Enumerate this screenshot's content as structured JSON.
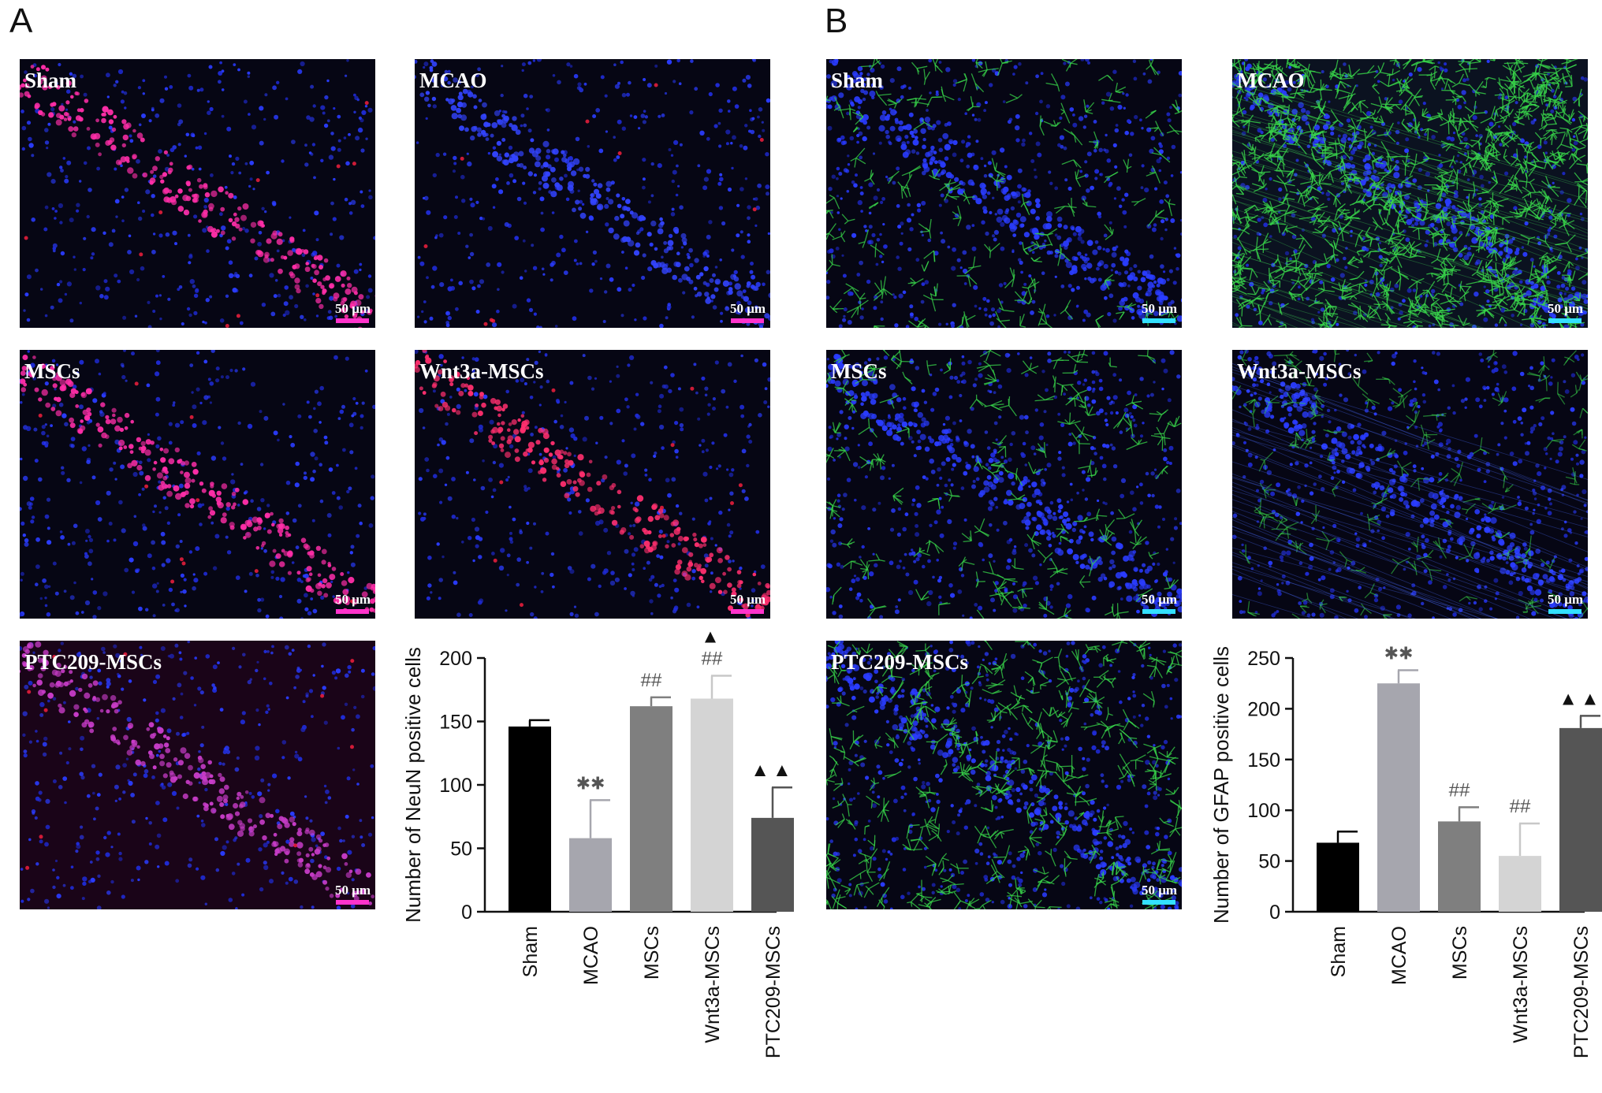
{
  "panels": [
    {
      "letter": "A",
      "scale_bar_color": "#ff33cc",
      "images": [
        {
          "label": "Sham",
          "stain": "red-band",
          "scale_label": "50 μm"
        },
        {
          "label": "MCAO",
          "stain": "blue-only",
          "scale_label": "50 μm"
        },
        {
          "label": "MSCs",
          "stain": "red-band",
          "scale_label": "50 μm"
        },
        {
          "label": "Wnt3a-MSCs",
          "stain": "red-band-strong",
          "scale_label": "50 μm"
        },
        {
          "label": "PTC209-MSCs",
          "stain": "red-faint",
          "scale_label": "50 μm"
        }
      ]
    },
    {
      "letter": "B",
      "scale_bar_color": "#33e0ff",
      "images": [
        {
          "label": "Sham",
          "stain": "green-sparse",
          "scale_label": "50 μm"
        },
        {
          "label": "MCAO",
          "stain": "green-dense",
          "scale_label": "50 μm"
        },
        {
          "label": "MSCs",
          "stain": "green-sparse",
          "scale_label": "50 μm"
        },
        {
          "label": "Wnt3a-MSCs",
          "stain": "green-fibers",
          "scale_label": "50 μm"
        },
        {
          "label": "PTC209-MSCs",
          "stain": "green-medium",
          "scale_label": "50 μm"
        }
      ]
    }
  ],
  "chart_data": [
    {
      "type": "bar",
      "panel": "A",
      "categories": [
        "Sham",
        "MCAO",
        "MSCs",
        "Wnt3a-MSCs",
        "PTC209-MSCs"
      ],
      "values": [
        146,
        58,
        162,
        168,
        74
      ],
      "errors": [
        5,
        30,
        7,
        18,
        24
      ],
      "annotations": [
        "",
        "**",
        "##",
        "▲\n##",
        "▲▲"
      ],
      "colors": [
        "#000000",
        "#a6a6ae",
        "#7f7f7f",
        "#d4d4d4",
        "#555555"
      ],
      "ylabel": "Number of NeuN positive cells",
      "xlabel": "",
      "ylim": [
        0,
        200
      ],
      "yticks": [
        0,
        50,
        100,
        150,
        200
      ],
      "grid": false
    },
    {
      "type": "bar",
      "panel": "B",
      "categories": [
        "Sham",
        "MCAO",
        "MSCs",
        "Wnt3a-MSCs",
        "PTC209-MSCs"
      ],
      "values": [
        68,
        225,
        89,
        55,
        181
      ],
      "errors": [
        11,
        13,
        14,
        32,
        12
      ],
      "annotations": [
        "",
        "**",
        "##",
        "##",
        "▲▲"
      ],
      "colors": [
        "#000000",
        "#a6a6ae",
        "#7f7f7f",
        "#d4d4d4",
        "#555555"
      ],
      "ylabel": "Number of GFAP positive cells",
      "xlabel": "",
      "ylim": [
        0,
        250
      ],
      "yticks": [
        0,
        50,
        100,
        150,
        200,
        250
      ],
      "grid": false
    }
  ]
}
